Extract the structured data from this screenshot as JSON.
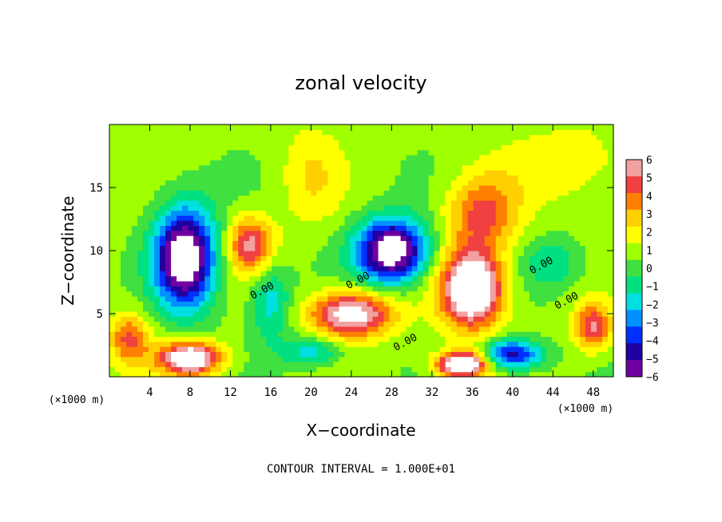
{
  "chart_data": {
    "type": "heatmap",
    "title": "zonal velocity",
    "xlabel": "X−coordinate",
    "ylabel": "Z−coordinate",
    "x_unit_label": "(×1000 m)",
    "x_unit_label_right": "(×1000 m)",
    "footer": "CONTOUR INTERVAL = 1.000E+01",
    "xlim": [
      0,
      50
    ],
    "ylim": [
      0,
      20
    ],
    "xticks": [
      4,
      8,
      12,
      16,
      20,
      24,
      28,
      32,
      36,
      40,
      44,
      48
    ],
    "yticks": [
      5,
      10,
      15
    ],
    "colorbar": {
      "range": [
        -6,
        6
      ],
      "ticks": [
        "6",
        "5",
        "4",
        "3",
        "2",
        "1",
        "0",
        "−1",
        "−2",
        "−3",
        "−4",
        "−5",
        "−6"
      ],
      "colors": [
        "#f2a0a0",
        "#f04040",
        "#ff8000",
        "#ffd000",
        "#ffff00",
        "#a0ff00",
        "#40e040",
        "#00e080",
        "#00e0e0",
        "#0090ff",
        "#0030ff",
        "#2000a0",
        "#7000a0"
      ]
    },
    "contour_labels": [
      {
        "text": "0.00",
        "x": 15.3,
        "y": 6.6
      },
      {
        "text": "0.00",
        "x": 24.8,
        "y": 7.4
      },
      {
        "text": "0.00",
        "x": 29.5,
        "y": 2.5
      },
      {
        "text": "0.00",
        "x": 43.0,
        "y": 8.6
      },
      {
        "text": "0.00",
        "x": 45.5,
        "y": 5.8
      }
    ],
    "features": [
      {
        "x": 7.5,
        "z": 9.5,
        "sx": 3.0,
        "sz": 4.0,
        "v": -9
      },
      {
        "x": 14.0,
        "z": 10.5,
        "sx": 2.2,
        "sz": 2.2,
        "v": 5
      },
      {
        "x": 28.0,
        "z": 10.0,
        "sx": 3.5,
        "sz": 2.5,
        "v": -9
      },
      {
        "x": 36.0,
        "z": 7.0,
        "sx": 3.0,
        "sz": 3.0,
        "v": 9
      },
      {
        "x": 37.0,
        "z": 13.0,
        "sx": 3.5,
        "sz": 3.0,
        "v": 4
      },
      {
        "x": 24.0,
        "z": 5.0,
        "sx": 4.0,
        "sz": 1.8,
        "v": 7
      },
      {
        "x": 8.0,
        "z": 1.5,
        "sx": 3.0,
        "sz": 1.3,
        "v": 8
      },
      {
        "x": 40.0,
        "z": 1.8,
        "sx": 3.0,
        "sz": 1.2,
        "v": -6
      },
      {
        "x": 35.0,
        "z": 1.0,
        "sx": 2.5,
        "sz": 1.0,
        "v": 9
      },
      {
        "x": 2.0,
        "z": 3.0,
        "sx": 2.0,
        "sz": 2.0,
        "v": 4
      },
      {
        "x": 48.0,
        "z": 4.0,
        "sx": 1.8,
        "sz": 1.8,
        "v": 5
      },
      {
        "x": 20.0,
        "z": 2.0,
        "sx": 3.0,
        "sz": 1.2,
        "v": -3
      },
      {
        "x": 16.0,
        "z": 6.0,
        "sx": 2.0,
        "sz": 3.0,
        "v": -3
      },
      {
        "x": 46.0,
        "z": 17.0,
        "sx": 6.0,
        "sz": 3.0,
        "v": 1.5
      },
      {
        "x": 20.0,
        "z": 16.0,
        "sx": 3.0,
        "sz": 4.0,
        "v": 1.6
      },
      {
        "x": 44.0,
        "z": 9.0,
        "sx": 3.0,
        "sz": 2.0,
        "v": -2
      }
    ]
  }
}
